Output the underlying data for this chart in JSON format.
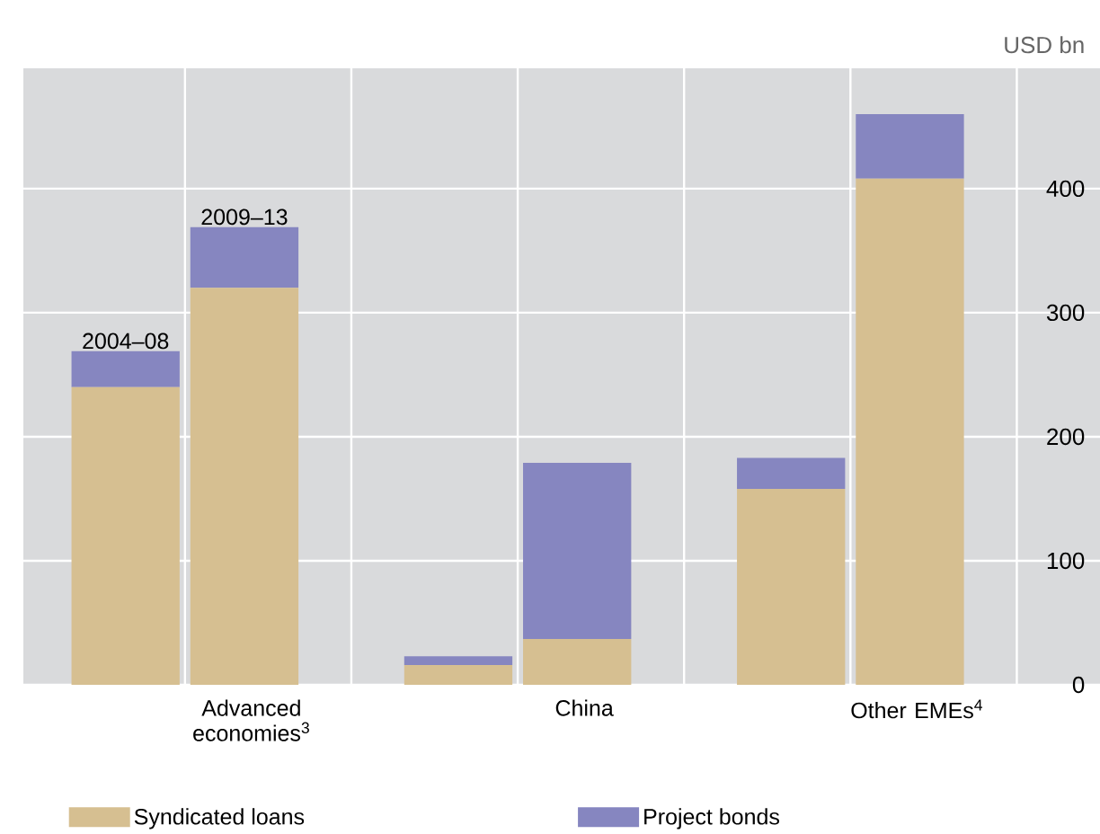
{
  "chart_data": {
    "type": "bar",
    "stacked": true,
    "ylabel": "USD bn",
    "categories": [
      null,
      null,
      null,
      null,
      null,
      null
    ],
    "series": [
      {
        "name": "Syndicated loans",
        "color": "#d6bf91",
        "values": [
          240,
          320,
          16,
          37,
          158,
          408
        ]
      },
      {
        "name": "Project bonds",
        "color": "#8686c0",
        "values": [
          29,
          49,
          7,
          142,
          25,
          52
        ]
      }
    ],
    "ylim": [
      0,
      497
    ],
    "yticks": [
      0,
      100,
      200,
      300,
      400
    ],
    "grid": true,
    "legend": "bottom",
    "annotations": [
      "2004–08",
      "2009–13",
      "Advanced economies$^{3}$",
      "China",
      "Other EMEs$^{4}$"
    ]
  }
}
